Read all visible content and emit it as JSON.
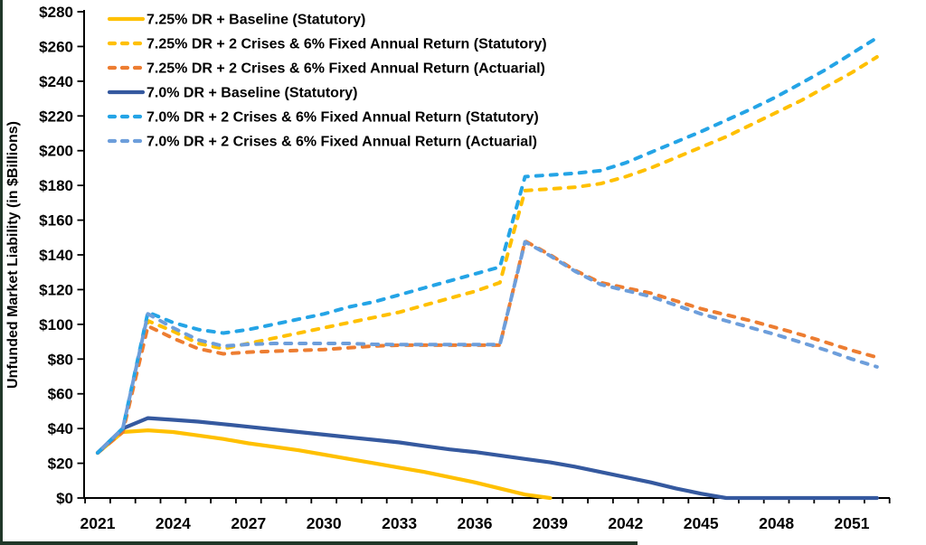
{
  "figure": {
    "background": "#ffffff",
    "edge_strip_color": "#203728"
  },
  "chart_data": {
    "type": "line",
    "title": "",
    "xlabel": "",
    "ylabel": "Unfunded Market Liability (in $Billions)",
    "ylim": [
      0,
      280
    ],
    "grid": false,
    "legend_position": "top-left-inside",
    "axis_color": "#000000",
    "y_tick_values": [
      0,
      20,
      40,
      60,
      80,
      100,
      120,
      140,
      160,
      180,
      200,
      220,
      240,
      260,
      280
    ],
    "y_tick_labels": [
      "$0",
      "$20",
      "$40",
      "$60",
      "$80",
      "$100",
      "$120",
      "$140",
      "$160",
      "$180",
      "$200",
      "$220",
      "$240",
      "$260",
      "$280"
    ],
    "x_label_years": [
      2021,
      2024,
      2027,
      2030,
      2033,
      2036,
      2039,
      2042,
      2045,
      2048,
      2051
    ],
    "x_labels": [
      "2021",
      "2024",
      "2027",
      "2030",
      "2033",
      "2036",
      "2039",
      "2042",
      "2045",
      "2048",
      "2051"
    ],
    "x_minor_tick_every_years": 1,
    "x": [
      2021,
      2022,
      2023,
      2024,
      2025,
      2026,
      2027,
      2028,
      2029,
      2030,
      2031,
      2032,
      2033,
      2034,
      2035,
      2036,
      2037,
      2038,
      2039,
      2040,
      2041,
      2042,
      2043,
      2044,
      2045,
      2046,
      2047,
      2048,
      2049,
      2050,
      2051,
      2052
    ],
    "series": [
      {
        "name": "7.25% DR + Baseline (Statutory)",
        "color": "#FFC000",
        "dash": false,
        "values": [
          26,
          38,
          39,
          38,
          36,
          34,
          31.5,
          29.5,
          27.5,
          25,
          22.5,
          20,
          17.5,
          15,
          12,
          9,
          5.5,
          2,
          0,
          null,
          null,
          null,
          null,
          null,
          null,
          null,
          null,
          null,
          null,
          null,
          null,
          null
        ]
      },
      {
        "name": "7.25% DR + 2 Crises & 6% Fixed Annual Return (Statutory)",
        "color": "#FFC000",
        "dash": true,
        "values": [
          26,
          38,
          102,
          96,
          89,
          86,
          89,
          92,
          95,
          98,
          101,
          104,
          107,
          111,
          115,
          119,
          124,
          177,
          178,
          179,
          181,
          185,
          190,
          196,
          202,
          208,
          215,
          222,
          229,
          237,
          245,
          254
        ]
      },
      {
        "name": "7.25% DR + 2 Crises & 6% Fixed Annual Return (Actuarial)",
        "color": "#ED7D31",
        "dash": true,
        "values": [
          26,
          38,
          99,
          92,
          86,
          83,
          84,
          84.5,
          85,
          85.5,
          86.5,
          87.5,
          88,
          88,
          88,
          88,
          88,
          148,
          140,
          131,
          124,
          121,
          118,
          113.5,
          109,
          105.5,
          102,
          98,
          94,
          89.5,
          85,
          81
        ]
      },
      {
        "name": "7.0% DR + Baseline (Statutory)",
        "color": "#35599F",
        "dash": false,
        "values": [
          26,
          40,
          46,
          45,
          44,
          42.5,
          41,
          39.5,
          38,
          36.5,
          35,
          33.5,
          32,
          30,
          28,
          26.5,
          24.5,
          22.5,
          20.5,
          18,
          15,
          12,
          9,
          5.5,
          2.5,
          0,
          0,
          0,
          0,
          0,
          0,
          0
        ]
      },
      {
        "name": "7.0% DR + 2 Crises & 6% Fixed Annual Return (Statutory)",
        "color": "#24A4E6",
        "dash": true,
        "values": [
          26,
          40,
          107,
          101,
          97,
          95,
          97,
          100,
          103,
          106,
          110,
          113,
          117,
          121,
          125,
          129,
          133,
          185,
          186,
          187,
          188.5,
          193,
          199,
          205,
          211,
          217.5,
          224,
          231,
          239,
          247,
          256,
          265
        ]
      },
      {
        "name": "7.0% DR + 2 Crises & 6% Fixed Annual Return (Actuarial)",
        "color": "#6D9EDB",
        "dash": true,
        "values": [
          26,
          40,
          106,
          98,
          91,
          87.5,
          88.5,
          89,
          89,
          89,
          89,
          88.5,
          88.3,
          88.3,
          88.3,
          88.3,
          88.3,
          147.5,
          139.5,
          130.5,
          123,
          119.5,
          116,
          111,
          106,
          102,
          98,
          94,
          89.5,
          85,
          80,
          75.5
        ]
      }
    ]
  }
}
